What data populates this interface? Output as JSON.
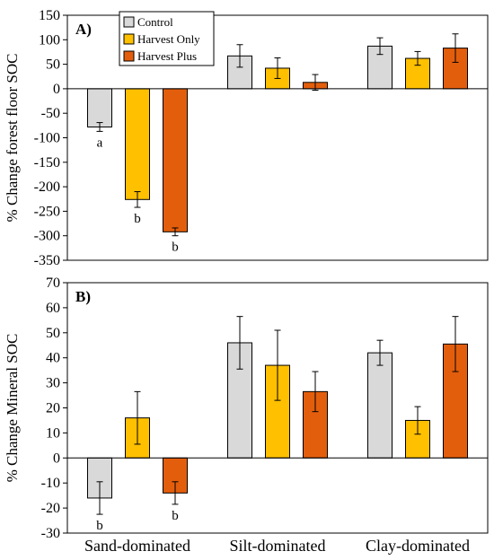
{
  "chart_data": [
    {
      "type": "bar",
      "panel_label": "A)",
      "ylabel": "% Change forest floor SOC",
      "ylim": [
        -350,
        150
      ],
      "yticks": [
        150,
        100,
        50,
        0,
        -50,
        -100,
        -150,
        -200,
        -250,
        -300,
        -350
      ],
      "categories": [
        "Sand-dominated",
        "Silt-dominated",
        "Clay-dominated"
      ],
      "legend_position": "top-left",
      "series": [
        {
          "name": "Control",
          "color": "#d9d9d9",
          "values": [
            -78,
            67,
            87
          ],
          "errors": [
            9,
            23,
            17
          ],
          "labels": [
            "a",
            "",
            ""
          ]
        },
        {
          "name": "Harvest Only",
          "color": "#ffc000",
          "values": [
            -226,
            42,
            62
          ],
          "errors": [
            16,
            21,
            14
          ],
          "labels": [
            "b",
            "",
            ""
          ]
        },
        {
          "name": "Harvest Plus",
          "color": "#e35e0c",
          "values": [
            -292,
            13,
            83
          ],
          "errors": [
            8,
            16,
            29
          ],
          "labels": [
            "b",
            "",
            ""
          ]
        }
      ]
    },
    {
      "type": "bar",
      "panel_label": "B)",
      "ylabel": "% Change Mineral SOC",
      "ylim": [
        -30,
        70
      ],
      "yticks": [
        70,
        60,
        50,
        40,
        30,
        20,
        10,
        0,
        -10,
        -20,
        -30
      ],
      "categories": [
        "Sand-dominated",
        "Silt-dominated",
        "Clay-dominated"
      ],
      "series": [
        {
          "name": "Control",
          "color": "#d9d9d9",
          "values": [
            -16,
            46,
            42
          ],
          "errors": [
            6.5,
            10.5,
            5
          ],
          "labels": [
            "b",
            "",
            ""
          ]
        },
        {
          "name": "Harvest Only",
          "color": "#ffc000",
          "values": [
            16,
            37,
            15
          ],
          "errors": [
            10.5,
            14,
            5.5
          ],
          "labels": [
            "",
            "",
            ""
          ]
        },
        {
          "name": "Harvest Plus",
          "color": "#e35e0c",
          "values": [
            -14,
            26.5,
            45.5
          ],
          "errors": [
            4.5,
            8,
            11
          ],
          "labels": [
            "b",
            "",
            ""
          ]
        }
      ]
    }
  ]
}
